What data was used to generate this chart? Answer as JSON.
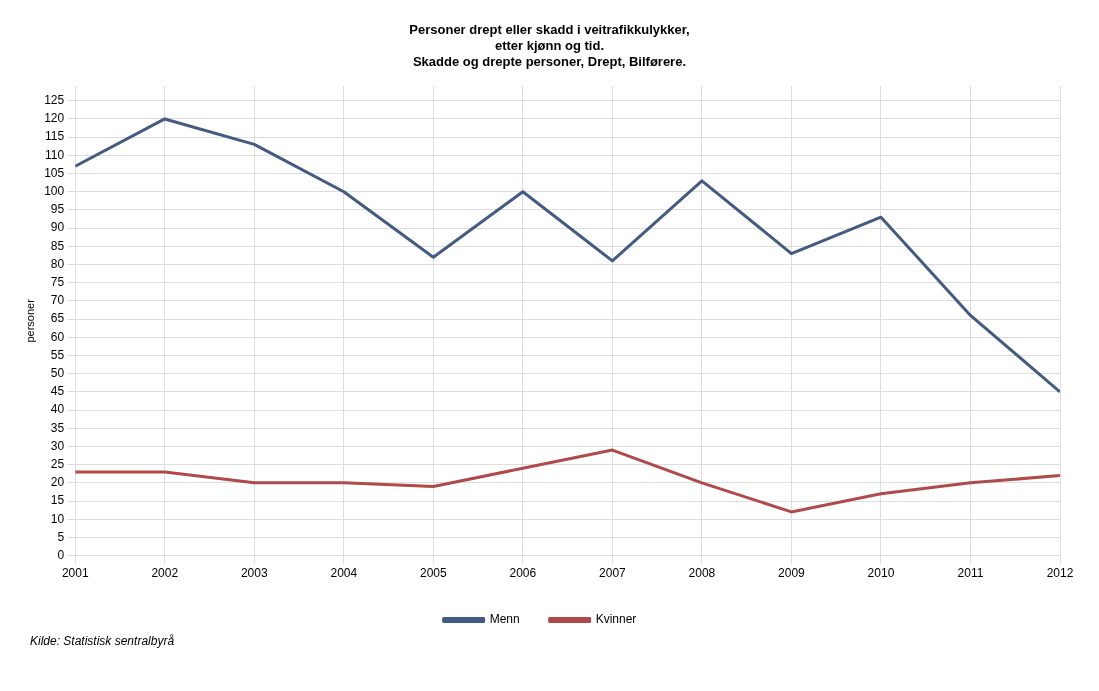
{
  "chart_data": {
    "type": "line",
    "title": "Personer drept eller skadd i veitrafikkulykker,\netter kjønn og tid.\nSkadde og drepte personer, Drept, Bilførere.",
    "ylabel": "personer",
    "x": [
      2001,
      2002,
      2003,
      2004,
      2005,
      2006,
      2007,
      2008,
      2009,
      2010,
      2011,
      2012
    ],
    "series": [
      {
        "name": "Menn",
        "color": "#435a82",
        "values": [
          107,
          120,
          113,
          100,
          82,
          100,
          81,
          103,
          83,
          93,
          66,
          45
        ]
      },
      {
        "name": "Kvinner",
        "color": "#b04a4a",
        "values": [
          23,
          23,
          20,
          20,
          19,
          24,
          29,
          20,
          12,
          17,
          20,
          22
        ]
      }
    ],
    "xlim": [
      2001,
      2012
    ],
    "xticks": [
      2001,
      2002,
      2003,
      2004,
      2005,
      2006,
      2007,
      2008,
      2009,
      2010,
      2011,
      2012
    ],
    "ylim": [
      0,
      129
    ],
    "yticks": [
      0,
      5,
      10,
      15,
      20,
      25,
      30,
      35,
      40,
      45,
      50,
      55,
      60,
      65,
      70,
      75,
      80,
      85,
      90,
      95,
      100,
      105,
      110,
      115,
      120,
      125
    ],
    "grid": true,
    "legend": "bottom",
    "marker": "none",
    "line_style": "solid",
    "annotations": [
      "Kilde: Statistisk sentralbyrå"
    ]
  }
}
